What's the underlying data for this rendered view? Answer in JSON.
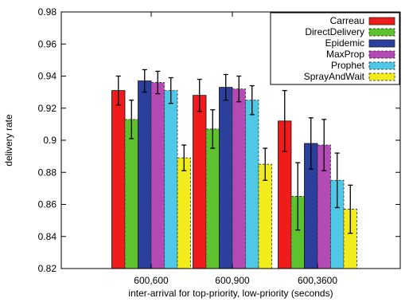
{
  "chart_data": {
    "type": "bar",
    "title": "",
    "xlabel": "inter-arrival for top-priority, low-priority (seconds)",
    "ylabel": "delivery rate",
    "ylim": [
      0.82,
      0.98
    ],
    "yticks": [
      "0.82",
      "0.84",
      "0.86",
      "0.88",
      "0.9",
      "0.92",
      "0.94",
      "0.96",
      "0.98"
    ],
    "categories": [
      "600,600",
      "600,900",
      "600,3600"
    ],
    "legend_position": "top-right",
    "grid": false,
    "series": [
      {
        "name": "Carreau",
        "color": "#f01c1c",
        "hatch": "none",
        "values": [
          0.931,
          0.928,
          0.912
        ],
        "err": [
          0.009,
          0.01,
          0.019
        ]
      },
      {
        "name": "DirectDelivery",
        "color": "#5ec22f",
        "hatch": "dashed",
        "values": [
          0.913,
          0.907,
          0.865
        ],
        "err": [
          0.012,
          0.012,
          0.021
        ]
      },
      {
        "name": "Epidemic",
        "color": "#2b3f9d",
        "hatch": "none",
        "values": [
          0.937,
          0.933,
          0.898
        ],
        "err": [
          0.007,
          0.008,
          0.016
        ]
      },
      {
        "name": "MaxProp",
        "color": "#b44ab4",
        "hatch": "dashed",
        "values": [
          0.936,
          0.932,
          0.897
        ],
        "err": [
          0.007,
          0.008,
          0.016
        ]
      },
      {
        "name": "Prophet",
        "color": "#4fc8e8",
        "hatch": "dashed",
        "values": [
          0.931,
          0.925,
          0.875
        ],
        "err": [
          0.008,
          0.009,
          0.017
        ]
      },
      {
        "name": "SprayAndWait",
        "color": "#f2ec1d",
        "hatch": "dashed",
        "values": [
          0.889,
          0.885,
          0.857
        ],
        "err": [
          0.008,
          0.01,
          0.015
        ]
      }
    ]
  }
}
